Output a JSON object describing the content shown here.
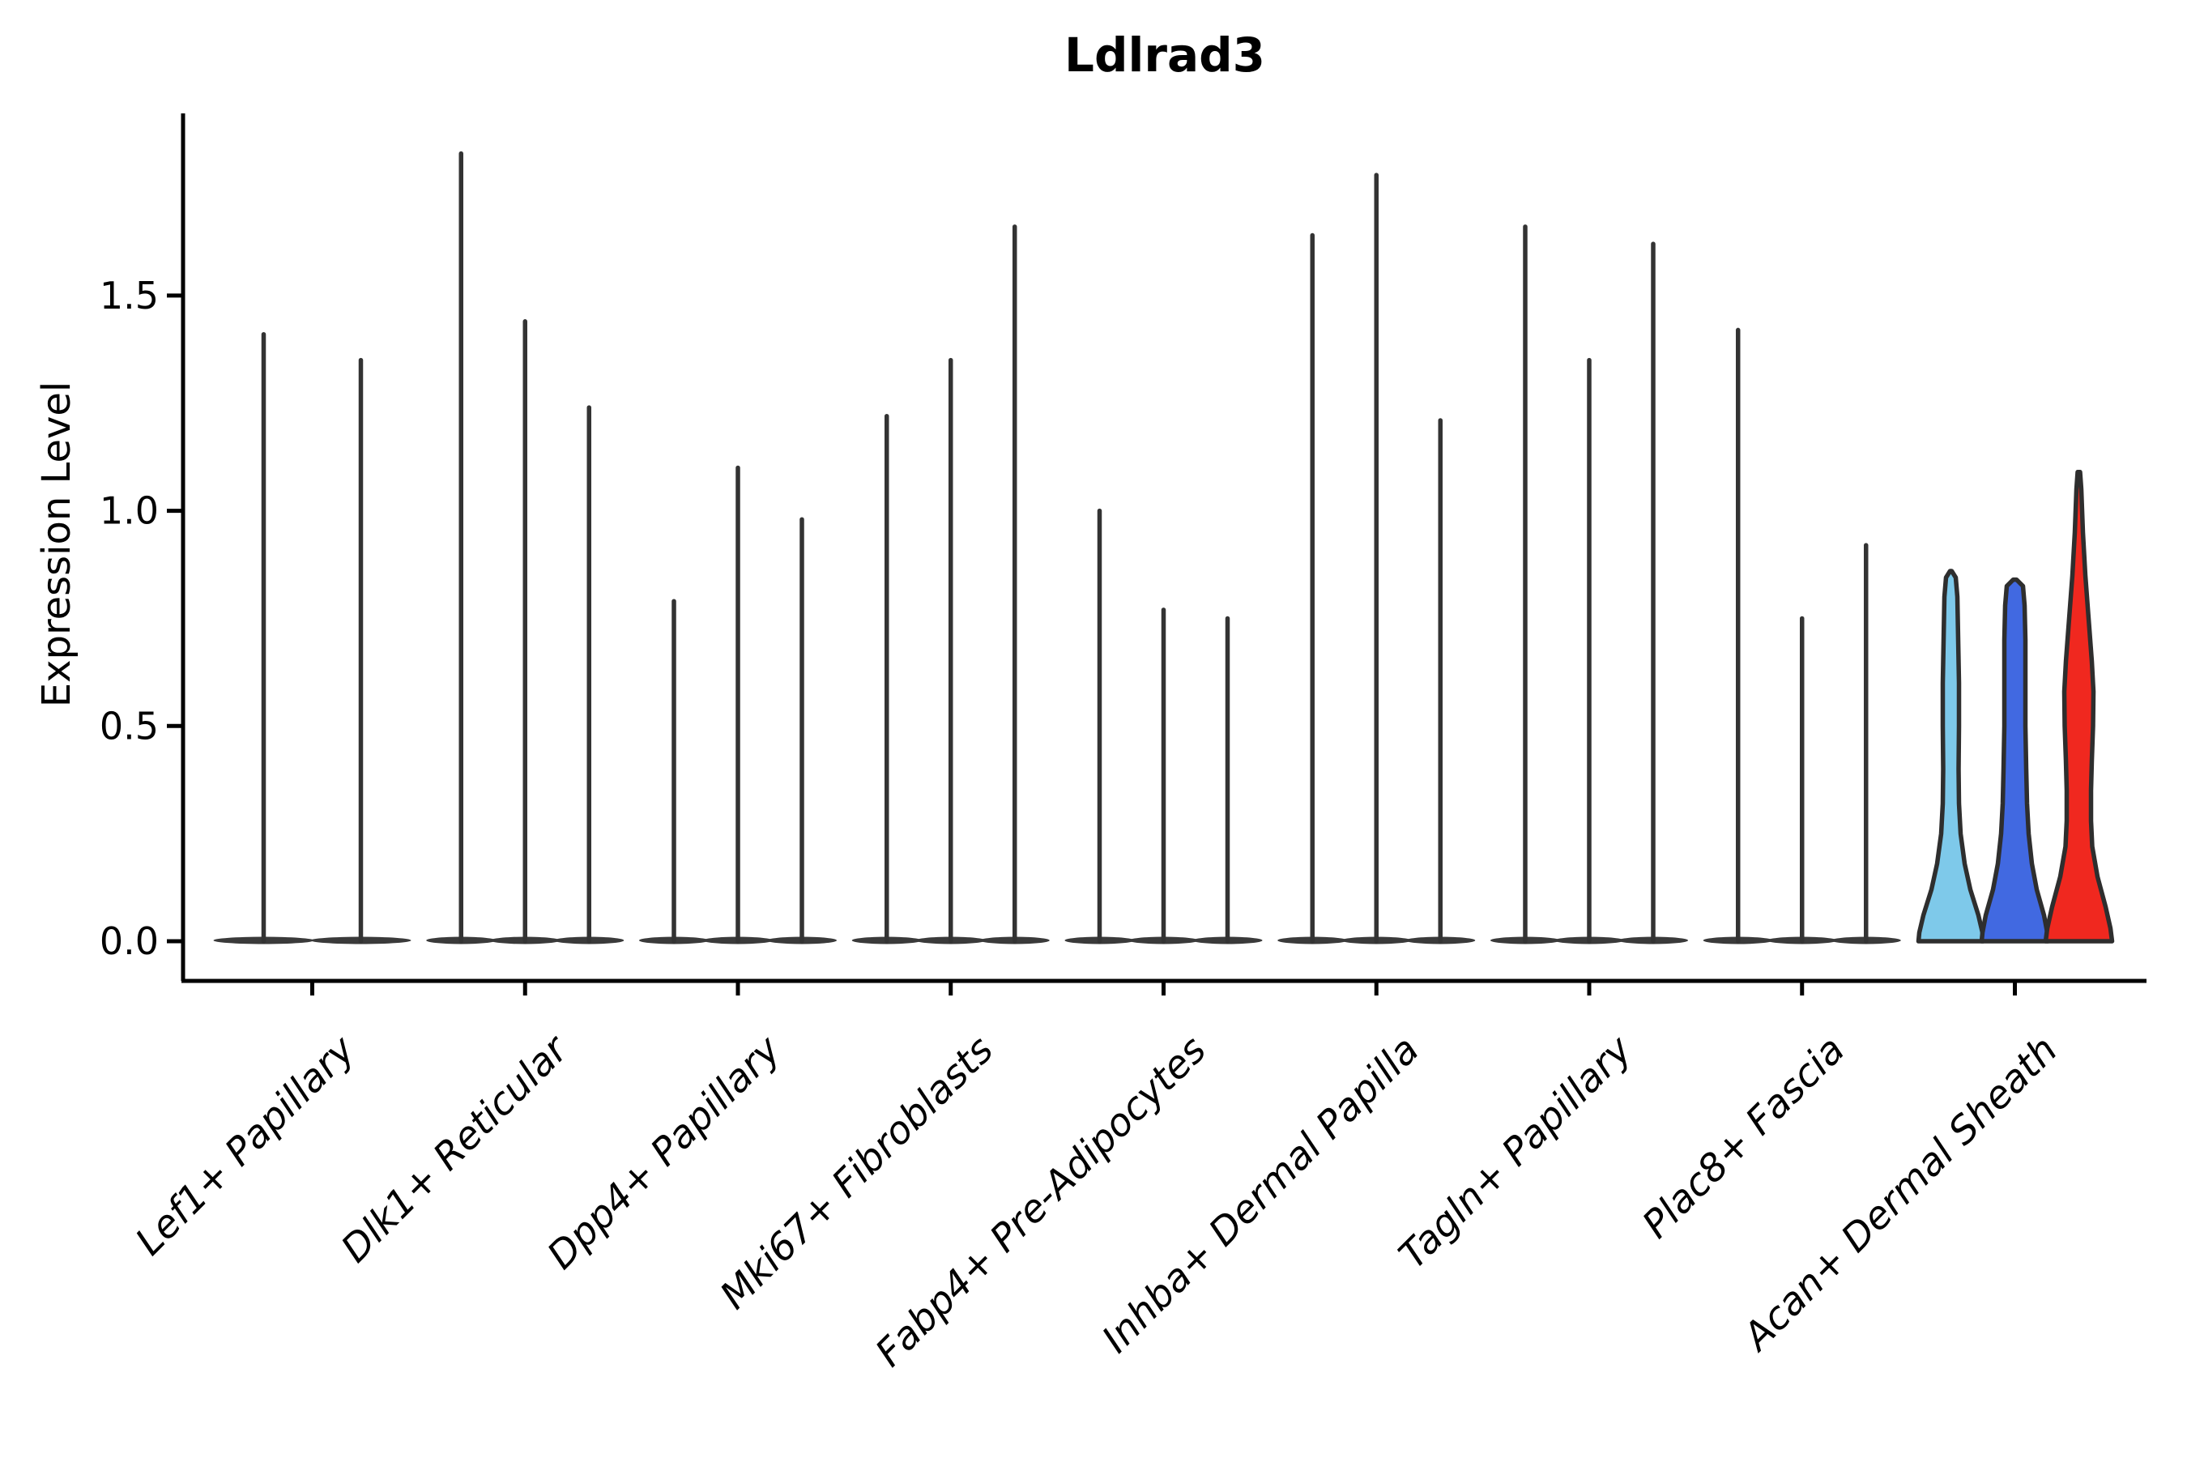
{
  "title": "Ldlrad3",
  "ylabel": "Expression Level",
  "chart_data": {
    "type": "violin",
    "title": "Ldlrad3",
    "xlabel": "",
    "ylabel": "Expression Level",
    "ylim": [
      -0.09,
      1.92
    ],
    "yticks": [
      0.0,
      0.5,
      1.0,
      1.5
    ],
    "ytick_labels": [
      "0.0",
      "0.5",
      "1.0",
      "1.5"
    ],
    "grid": false,
    "legend": "none",
    "categories": [
      "Lef1+ Papillary",
      "Dlk1+ Reticular",
      "Dpp4+ Papillary",
      "Mki67+ Fibroblasts",
      "Fabp4+ Pre-Adipocytes",
      "Inhba+ Dermal Papilla",
      "Tagln+ Papillary",
      "Plac8+ Fascia",
      "Acan+ Dermal Sheath"
    ],
    "colors": {
      "skyblue_fill": "#7EC9EA",
      "blue_fill": "#4169E1",
      "red_fill": "#F0281F",
      "violin_edge": "#2E2E2E",
      "spike_stroke": "#333333",
      "base_fill": "#3A3A3A",
      "axis": "#000000"
    },
    "groups": [
      {
        "label": "Lef1+ Papillary",
        "violins": [
          {
            "max": 1.41,
            "offset": -60,
            "width": 120,
            "style": "spike"
          },
          {
            "max": 1.35,
            "offset": 60,
            "width": 120,
            "style": "spike"
          }
        ]
      },
      {
        "label": "Dlk1+ Reticular",
        "violins": [
          {
            "max": 1.83,
            "offset": -79,
            "width": 82,
            "style": "spike"
          },
          {
            "max": 1.44,
            "offset": 0,
            "width": 82,
            "style": "spike"
          },
          {
            "max": 1.24,
            "offset": 79,
            "width": 82,
            "style": "spike"
          }
        ]
      },
      {
        "label": "Dpp4+ Papillary",
        "violins": [
          {
            "max": 0.79,
            "offset": -79,
            "width": 82,
            "style": "spike"
          },
          {
            "max": 1.1,
            "offset": 0,
            "width": 82,
            "style": "spike"
          },
          {
            "max": 0.98,
            "offset": 79,
            "width": 82,
            "style": "spike"
          }
        ]
      },
      {
        "label": "Mki67+ Fibroblasts",
        "violins": [
          {
            "max": 1.22,
            "offset": -79,
            "width": 82,
            "style": "spike"
          },
          {
            "max": 1.35,
            "offset": 0,
            "width": 82,
            "style": "spike"
          },
          {
            "max": 1.66,
            "offset": 79,
            "width": 82,
            "style": "spike"
          }
        ]
      },
      {
        "label": "Fabp4+ Pre-Adipocytes",
        "violins": [
          {
            "max": 1.0,
            "offset": -79,
            "width": 82,
            "style": "spike"
          },
          {
            "max": 0.77,
            "offset": 0,
            "width": 82,
            "style": "spike"
          },
          {
            "max": 0.75,
            "offset": 79,
            "width": 82,
            "style": "spike"
          }
        ]
      },
      {
        "label": "Inhba+ Dermal Papilla",
        "violins": [
          {
            "max": 1.64,
            "offset": -79,
            "width": 82,
            "style": "spike"
          },
          {
            "max": 1.78,
            "offset": 0,
            "width": 82,
            "style": "spike"
          },
          {
            "max": 1.21,
            "offset": 79,
            "width": 82,
            "style": "spike"
          }
        ]
      },
      {
        "label": "Tagln+ Papillary",
        "violins": [
          {
            "max": 1.66,
            "offset": -79,
            "width": 82,
            "style": "spike"
          },
          {
            "max": 1.35,
            "offset": 0,
            "width": 82,
            "style": "spike"
          },
          {
            "max": 1.62,
            "offset": 79,
            "width": 82,
            "style": "spike"
          }
        ]
      },
      {
        "label": "Plac8+ Fascia",
        "violins": [
          {
            "max": 1.42,
            "offset": -79,
            "width": 82,
            "style": "spike"
          },
          {
            "max": 0.75,
            "offset": 0,
            "width": 82,
            "style": "spike"
          },
          {
            "max": 0.92,
            "offset": 79,
            "width": 82,
            "style": "spike"
          }
        ]
      },
      {
        "label": "Acan+ Dermal Sheath",
        "violins": [
          {
            "max": 0.86,
            "offset": -79,
            "width": 82,
            "style": "filled",
            "color_key": "skyblue_fill",
            "profile": [
              [
                0.86,
                1
              ],
              [
                0.845,
                6
              ],
              [
                0.8,
                8
              ],
              [
                0.7,
                9
              ],
              [
                0.6,
                10
              ],
              [
                0.5,
                10
              ],
              [
                0.4,
                9.5
              ],
              [
                0.32,
                10
              ],
              [
                0.25,
                12
              ],
              [
                0.18,
                17
              ],
              [
                0.12,
                24
              ],
              [
                0.06,
                34
              ],
              [
                0.02,
                39
              ],
              [
                0.0,
                40
              ]
            ]
          },
          {
            "max": 0.84,
            "offset": 0,
            "width": 82,
            "style": "filled",
            "color_key": "blue_fill",
            "profile": [
              [
                0.84,
                2
              ],
              [
                0.825,
                10
              ],
              [
                0.78,
                12
              ],
              [
                0.7,
                13
              ],
              [
                0.6,
                13
              ],
              [
                0.5,
                13
              ],
              [
                0.4,
                14
              ],
              [
                0.32,
                15
              ],
              [
                0.25,
                17
              ],
              [
                0.18,
                21
              ],
              [
                0.12,
                27
              ],
              [
                0.06,
                36
              ],
              [
                0.02,
                40
              ],
              [
                0.0,
                41
              ]
            ]
          },
          {
            "max": 1.09,
            "offset": 79,
            "width": 82,
            "style": "filled",
            "color_key": "red_fill",
            "profile": [
              [
                1.09,
                1.5
              ],
              [
                1.05,
                3
              ],
              [
                0.95,
                5
              ],
              [
                0.85,
                8
              ],
              [
                0.75,
                12
              ],
              [
                0.65,
                16
              ],
              [
                0.58,
                18
              ],
              [
                0.5,
                17.5
              ],
              [
                0.42,
                16
              ],
              [
                0.35,
                15
              ],
              [
                0.28,
                15
              ],
              [
                0.22,
                16.5
              ],
              [
                0.15,
                23
              ],
              [
                0.08,
                33
              ],
              [
                0.03,
                39
              ],
              [
                0.0,
                41
              ]
            ]
          }
        ]
      }
    ]
  }
}
